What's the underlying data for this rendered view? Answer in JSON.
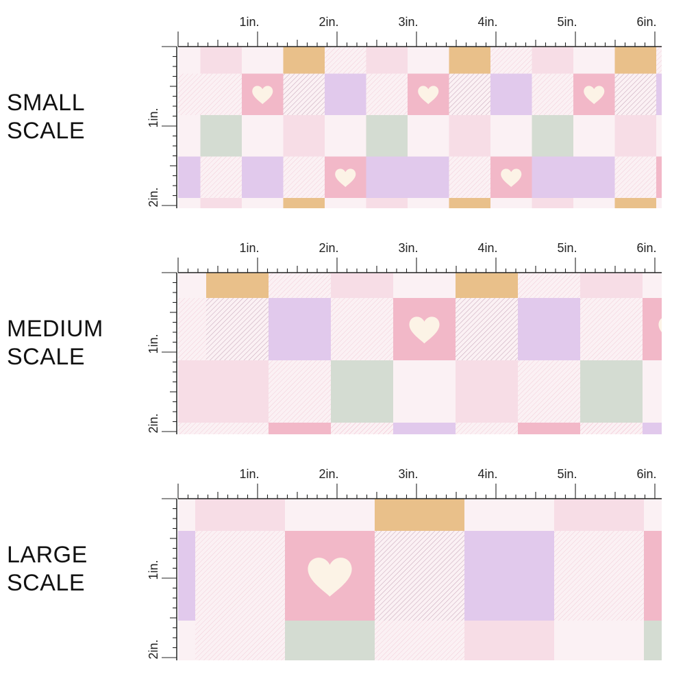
{
  "sections": [
    {
      "id": "small",
      "label": [
        "SMALL",
        "SCALE"
      ]
    },
    {
      "id": "medium",
      "label": [
        "MEDIUM",
        "SCALE"
      ]
    },
    {
      "id": "large",
      "label": [
        "LARGE",
        "SCALE"
      ]
    }
  ],
  "ruler": {
    "horizontal_labels": [
      "1in.",
      "2in.",
      "3in.",
      "4in.",
      "5in.",
      "6in."
    ],
    "vertical_labels": [
      "1in.",
      "2in."
    ]
  },
  "palette": {
    "peach": "#E9C08A",
    "pink": "#F2B8C8",
    "light_pink": "#F7DDE6",
    "pale": "#FBF1F4",
    "lavender": "#E1C9EC",
    "sage": "#D4DCD2",
    "heart": "#FCF3E6",
    "stripe": "#B88FA6",
    "ruler_line": "#222222"
  }
}
